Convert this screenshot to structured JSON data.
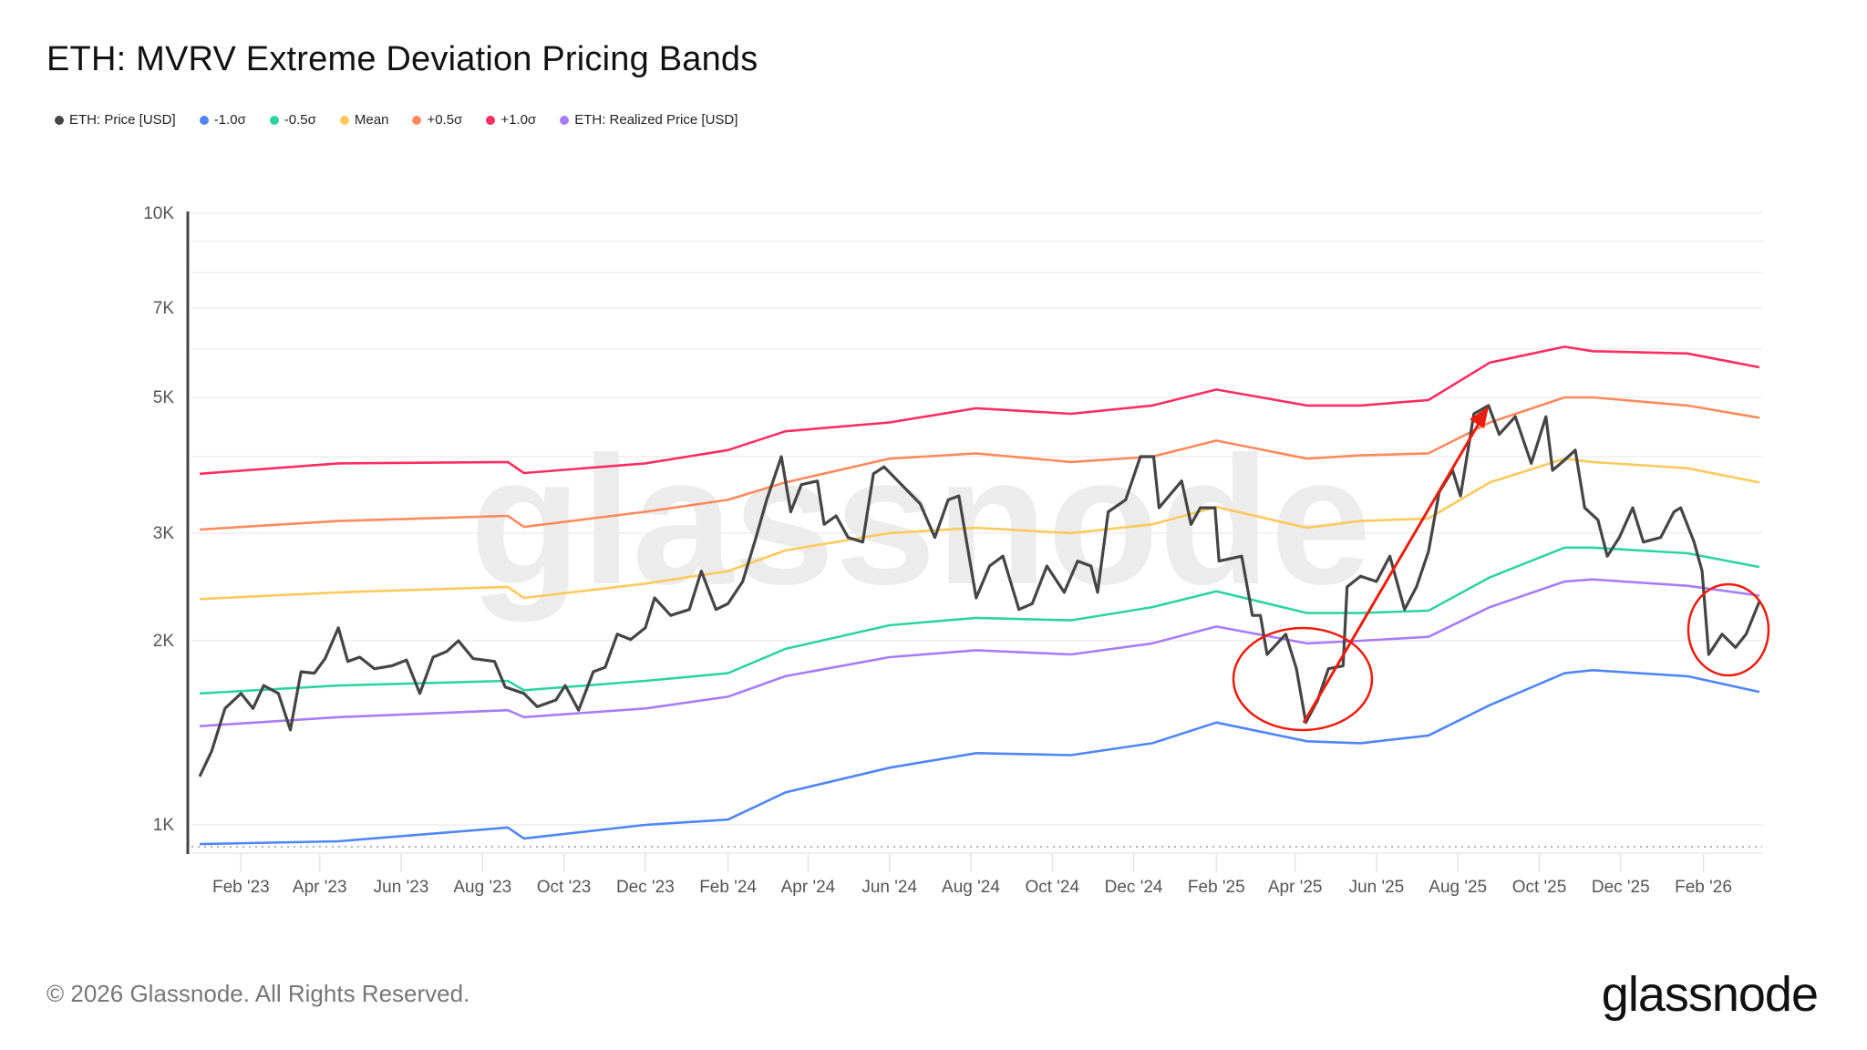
{
  "title": "ETH: MVRV Extreme Deviation Pricing Bands",
  "footer": "© 2026 Glassnode. All Rights Reserved.",
  "logo_text": "glassnode",
  "watermark_text": "glassnode",
  "chart_data": {
    "type": "line",
    "title": "ETH: MVRV Extreme Deviation Pricing Bands",
    "xlabel": "",
    "ylabel": "",
    "y_scale": "log",
    "ylim": [
      900,
      10000
    ],
    "xlim": [
      "2023-01-01",
      "2026-03-15"
    ],
    "grid": true,
    "legend_placement": "top-left",
    "y_ticks": [
      {
        "v": 1000,
        "label": "1K"
      },
      {
        "v": 2000,
        "label": "2K"
      },
      {
        "v": 3000,
        "label": "3K"
      },
      {
        "v": 5000,
        "label": "5K"
      },
      {
        "v": 7000,
        "label": "7K"
      },
      {
        "v": 10000,
        "label": "10K"
      }
    ],
    "y_gridlines": [
      1000,
      2000,
      3000,
      4000,
      5000,
      6000,
      7000,
      8000,
      9000,
      10000
    ],
    "x_ticks": [
      {
        "date": "2023-02-01",
        "label": "Feb '23"
      },
      {
        "date": "2023-04-01",
        "label": "Apr '23"
      },
      {
        "date": "2023-06-01",
        "label": "Jun '23"
      },
      {
        "date": "2023-08-01",
        "label": "Aug '23"
      },
      {
        "date": "2023-10-01",
        "label": "Oct '23"
      },
      {
        "date": "2023-12-01",
        "label": "Dec '23"
      },
      {
        "date": "2024-02-01",
        "label": "Feb '24"
      },
      {
        "date": "2024-04-01",
        "label": "Apr '24"
      },
      {
        "date": "2024-06-01",
        "label": "Jun '24"
      },
      {
        "date": "2024-08-01",
        "label": "Aug '24"
      },
      {
        "date": "2024-10-01",
        "label": "Oct '24"
      },
      {
        "date": "2024-12-01",
        "label": "Dec '24"
      },
      {
        "date": "2025-02-01",
        "label": "Feb '25"
      },
      {
        "date": "2025-04-01",
        "label": "Apr '25"
      },
      {
        "date": "2025-06-01",
        "label": "Jun '25"
      },
      {
        "date": "2025-08-01",
        "label": "Aug '25"
      },
      {
        "date": "2025-10-01",
        "label": "Oct '25"
      },
      {
        "date": "2025-12-01",
        "label": "Dec '25"
      },
      {
        "date": "2026-02-01",
        "label": "Feb '26"
      }
    ],
    "band_dates": [
      "2023-01-01",
      "2023-04-15",
      "2023-08-20",
      "2023-09-01",
      "2023-12-01",
      "2024-02-01",
      "2024-03-15",
      "2024-06-01",
      "2024-08-05",
      "2024-10-15",
      "2024-12-15",
      "2025-02-01",
      "2025-04-10",
      "2025-05-20",
      "2025-07-10",
      "2025-08-25",
      "2025-10-20",
      "2025-11-10",
      "2026-01-20",
      "2026-03-15"
    ],
    "series": [
      {
        "name": "ETH: Price [USD]",
        "color": "#454545",
        "width": 3.2,
        "points": [
          [
            "2023-01-01",
            1200
          ],
          [
            "2023-01-10",
            1320
          ],
          [
            "2023-01-20",
            1550
          ],
          [
            "2023-02-01",
            1640
          ],
          [
            "2023-02-10",
            1550
          ],
          [
            "2023-02-18",
            1690
          ],
          [
            "2023-03-01",
            1640
          ],
          [
            "2023-03-10",
            1430
          ],
          [
            "2023-03-18",
            1780
          ],
          [
            "2023-03-28",
            1770
          ],
          [
            "2023-04-05",
            1870
          ],
          [
            "2023-04-15",
            2100
          ],
          [
            "2023-04-22",
            1850
          ],
          [
            "2023-05-01",
            1880
          ],
          [
            "2023-05-12",
            1800
          ],
          [
            "2023-05-25",
            1820
          ],
          [
            "2023-06-05",
            1860
          ],
          [
            "2023-06-15",
            1640
          ],
          [
            "2023-06-25",
            1880
          ],
          [
            "2023-07-05",
            1920
          ],
          [
            "2023-07-14",
            2000
          ],
          [
            "2023-07-25",
            1870
          ],
          [
            "2023-08-10",
            1850
          ],
          [
            "2023-08-18",
            1680
          ],
          [
            "2023-09-01",
            1640
          ],
          [
            "2023-09-11",
            1560
          ],
          [
            "2023-09-25",
            1600
          ],
          [
            "2023-10-02",
            1690
          ],
          [
            "2023-10-12",
            1540
          ],
          [
            "2023-10-23",
            1780
          ],
          [
            "2023-11-01",
            1810
          ],
          [
            "2023-11-10",
            2050
          ],
          [
            "2023-11-20",
            2010
          ],
          [
            "2023-12-01",
            2100
          ],
          [
            "2023-12-08",
            2350
          ],
          [
            "2023-12-20",
            2200
          ],
          [
            "2024-01-03",
            2250
          ],
          [
            "2024-01-12",
            2600
          ],
          [
            "2024-01-23",
            2250
          ],
          [
            "2024-02-01",
            2300
          ],
          [
            "2024-02-12",
            2500
          ],
          [
            "2024-02-22",
            2950
          ],
          [
            "2024-03-01",
            3400
          ],
          [
            "2024-03-12",
            4000
          ],
          [
            "2024-03-19",
            3250
          ],
          [
            "2024-03-27",
            3600
          ],
          [
            "2024-04-08",
            3650
          ],
          [
            "2024-04-13",
            3100
          ],
          [
            "2024-04-22",
            3200
          ],
          [
            "2024-05-01",
            2950
          ],
          [
            "2024-05-12",
            2900
          ],
          [
            "2024-05-20",
            3750
          ],
          [
            "2024-05-28",
            3850
          ],
          [
            "2024-06-10",
            3600
          ],
          [
            "2024-06-24",
            3350
          ],
          [
            "2024-07-05",
            2950
          ],
          [
            "2024-07-15",
            3400
          ],
          [
            "2024-07-23",
            3450
          ],
          [
            "2024-08-05",
            2350
          ],
          [
            "2024-08-15",
            2650
          ],
          [
            "2024-08-25",
            2750
          ],
          [
            "2024-09-06",
            2250
          ],
          [
            "2024-09-16",
            2300
          ],
          [
            "2024-09-27",
            2650
          ],
          [
            "2024-10-10",
            2400
          ],
          [
            "2024-10-20",
            2700
          ],
          [
            "2024-10-30",
            2650
          ],
          [
            "2024-11-04",
            2400
          ],
          [
            "2024-11-12",
            3250
          ],
          [
            "2024-11-25",
            3400
          ],
          [
            "2024-12-06",
            4000
          ],
          [
            "2024-12-16",
            4000
          ],
          [
            "2024-12-20",
            3300
          ],
          [
            "2025-01-06",
            3650
          ],
          [
            "2025-01-13",
            3100
          ],
          [
            "2025-01-20",
            3300
          ],
          [
            "2025-01-31",
            3300
          ],
          [
            "2025-02-03",
            2700
          ],
          [
            "2025-02-20",
            2750
          ],
          [
            "2025-02-28",
            2200
          ],
          [
            "2025-03-06",
            2200
          ],
          [
            "2025-03-11",
            1900
          ],
          [
            "2025-03-25",
            2050
          ],
          [
            "2025-04-02",
            1800
          ],
          [
            "2025-04-09",
            1470
          ],
          [
            "2025-04-18",
            1600
          ],
          [
            "2025-04-26",
            1800
          ],
          [
            "2025-05-07",
            1820
          ],
          [
            "2025-05-10",
            2450
          ],
          [
            "2025-05-20",
            2550
          ],
          [
            "2025-06-01",
            2500
          ],
          [
            "2025-06-11",
            2750
          ],
          [
            "2025-06-22",
            2250
          ],
          [
            "2025-07-01",
            2450
          ],
          [
            "2025-07-10",
            2800
          ],
          [
            "2025-07-18",
            3500
          ],
          [
            "2025-07-28",
            3800
          ],
          [
            "2025-08-03",
            3450
          ],
          [
            "2025-08-13",
            4700
          ],
          [
            "2025-08-24",
            4850
          ],
          [
            "2025-09-01",
            4350
          ],
          [
            "2025-09-13",
            4650
          ],
          [
            "2025-09-25",
            3900
          ],
          [
            "2025-10-06",
            4650
          ],
          [
            "2025-10-11",
            3800
          ],
          [
            "2025-10-20",
            3950
          ],
          [
            "2025-10-28",
            4100
          ],
          [
            "2025-11-04",
            3300
          ],
          [
            "2025-11-14",
            3150
          ],
          [
            "2025-11-21",
            2750
          ],
          [
            "2025-11-30",
            2950
          ],
          [
            "2025-12-10",
            3300
          ],
          [
            "2025-12-18",
            2900
          ],
          [
            "2025-12-31",
            2950
          ],
          [
            "2026-01-10",
            3250
          ],
          [
            "2026-01-15",
            3300
          ],
          [
            "2026-01-25",
            2900
          ],
          [
            "2026-01-31",
            2600
          ],
          [
            "2026-02-05",
            1900
          ],
          [
            "2026-02-15",
            2050
          ],
          [
            "2026-02-25",
            1950
          ],
          [
            "2026-03-05",
            2050
          ],
          [
            "2026-03-15",
            2320
          ]
        ]
      },
      {
        "name": "-1.0σ",
        "color": "#4f86f7",
        "width": 2.6,
        "values": [
          930,
          940,
          990,
          950,
          1000,
          1020,
          1130,
          1240,
          1310,
          1300,
          1360,
          1470,
          1370,
          1360,
          1400,
          1570,
          1770,
          1790,
          1750,
          1650
        ]
      },
      {
        "name": "-0.5σ",
        "color": "#2ed3a3",
        "width": 2.6,
        "values": [
          1640,
          1690,
          1720,
          1660,
          1720,
          1770,
          1940,
          2120,
          2180,
          2160,
          2270,
          2410,
          2220,
          2220,
          2240,
          2540,
          2840,
          2840,
          2780,
          2640
        ]
      },
      {
        "name": "Mean",
        "color": "#ffc95c",
        "width": 2.6,
        "values": [
          2340,
          2400,
          2450,
          2350,
          2480,
          2600,
          2810,
          3000,
          3060,
          3000,
          3100,
          3310,
          3060,
          3140,
          3170,
          3630,
          3970,
          3920,
          3830,
          3630
        ]
      },
      {
        "name": "+0.5σ",
        "color": "#ff8a5c",
        "width": 2.6,
        "values": [
          3040,
          3140,
          3200,
          3070,
          3250,
          3400,
          3630,
          3970,
          4050,
          3920,
          4000,
          4250,
          3970,
          4020,
          4050,
          4550,
          5000,
          5000,
          4850,
          4630
        ]
      },
      {
        "name": "+1.0σ",
        "color": "#ff2d60",
        "width": 2.6,
        "values": [
          3750,
          3900,
          3920,
          3760,
          3900,
          4100,
          4400,
          4550,
          4800,
          4700,
          4850,
          5150,
          4850,
          4850,
          4950,
          5700,
          6050,
          5950,
          5900,
          5600
        ]
      },
      {
        "name": "ETH: Realized Price [USD]",
        "color": "#a77cfa",
        "width": 2.6,
        "values": [
          1450,
          1500,
          1540,
          1500,
          1550,
          1620,
          1750,
          1880,
          1930,
          1900,
          1980,
          2110,
          1980,
          2000,
          2030,
          2270,
          2500,
          2520,
          2460,
          2370
        ]
      }
    ]
  }
}
